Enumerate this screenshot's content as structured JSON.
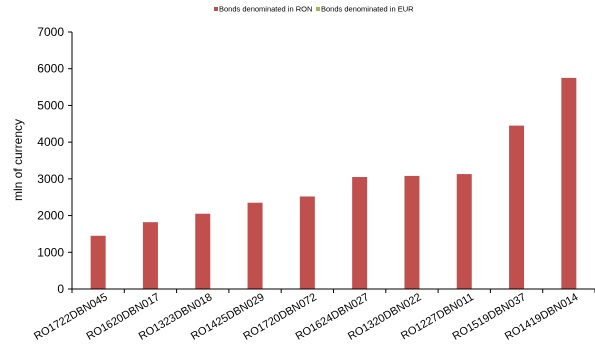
{
  "chart_data": {
    "type": "bar",
    "title": "",
    "xlabel": "",
    "ylabel": "mln of currency",
    "ylim": [
      0,
      7000
    ],
    "yticks": [
      0,
      1000,
      2000,
      3000,
      4000,
      5000,
      6000,
      7000
    ],
    "grid": false,
    "legend_position": "top",
    "categories": [
      "RO1722DBN045",
      "RO1620DBN017",
      "RO1323DBN018",
      "RO1425DBN029",
      "RO1720DBN072",
      "RO1624DBN027",
      "RO1320DBN022",
      "RO1227DBN011",
      "RO1519DBN037",
      "RO1419DBN014"
    ],
    "series": [
      {
        "name": "Bonds denominated in RON",
        "color": "#C0504D",
        "values": [
          1450,
          1820,
          2050,
          2350,
          2520,
          3050,
          3080,
          3130,
          4450,
          5750
        ]
      },
      {
        "name": "Bonds denominated in EUR",
        "color": "#9BBB59",
        "values": [
          0,
          0,
          0,
          0,
          0,
          0,
          0,
          0,
          0,
          0
        ]
      }
    ]
  }
}
